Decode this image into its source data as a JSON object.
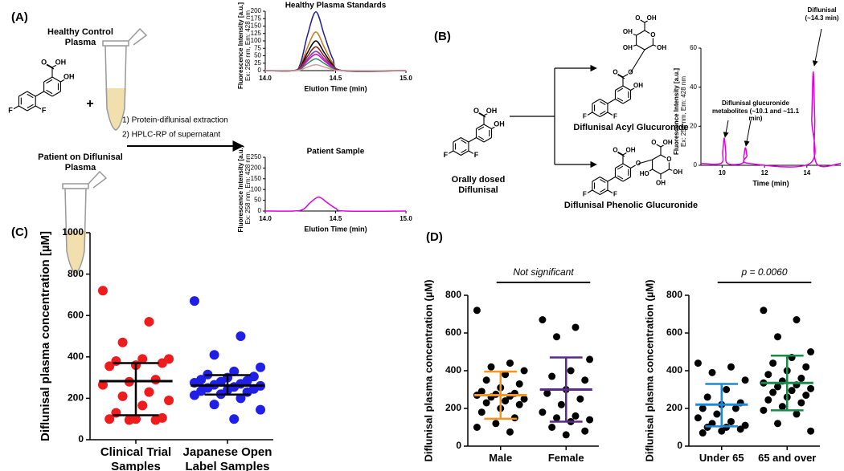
{
  "labels": {
    "a": "(A)",
    "b": "(B)",
    "c": "(C)",
    "d": "(D)"
  },
  "panel_a": {
    "healthy": "Healthy Control Plasma",
    "patient": "Patient on Diflunisal Plasma",
    "plus": "+",
    "steps": [
      "1) Protein-diflunisal extraction",
      "2) HPLC-RP of supernatant"
    ],
    "structure": [
      "O",
      "OH",
      "OH",
      "F",
      "F"
    ]
  },
  "panel_b": {
    "parent": "Orally dosed Diflunisal",
    "parent_structure": [
      "O",
      "OH",
      "OH",
      "F",
      "F"
    ],
    "acyl": "Diflunisal Acyl Glucuronide",
    "acyl_structure": [
      "O",
      "O",
      "OH",
      "F",
      "F",
      "O",
      "OH",
      "OH",
      "OH",
      "O",
      "OH"
    ],
    "phenolic": "Diflunisal Phenolic Glucuronide",
    "phenolic_structure": [
      "O",
      "OH",
      "O",
      "F",
      "F",
      "O",
      "O",
      "OH",
      "OH",
      "OH",
      "HO"
    ]
  },
  "chart_data": [
    {
      "type": "line",
      "title": "Healthy Plasma Standards",
      "xlabel": "Elution Time (min)",
      "ylabel": "Fluorescence Intensity [a.u.]",
      "ylabel_sub": "Ex: 258 nm, Em: 428 nm",
      "xlim": [
        14,
        15
      ],
      "xticks": [
        {
          "value": 14,
          "label": "14.0"
        },
        {
          "value": 14.5,
          "label": "14.5"
        },
        {
          "value": 15,
          "label": "15.0"
        }
      ],
      "ylim": [
        0,
        200
      ],
      "yticks": [
        0,
        25,
        50,
        75,
        100,
        125,
        150,
        175,
        200
      ],
      "x": [
        14.0,
        14.2,
        14.25,
        14.3,
        14.36,
        14.42,
        14.48,
        14.55,
        15.0
      ],
      "series": [
        {
          "color": "#1f1f8f",
          "values": [
            0,
            0,
            24,
            119,
            198,
            119,
            40,
            0,
            0
          ]
        },
        {
          "color": "#c8781e",
          "values": [
            0,
            0,
            16,
            78,
            130,
            78,
            26,
            0,
            0
          ]
        },
        {
          "color": "#000000",
          "values": [
            0,
            0,
            12,
            60,
            100,
            60,
            20,
            0,
            0
          ]
        },
        {
          "color": "#8b1a1a",
          "values": [
            0,
            0,
            10,
            48,
            80,
            48,
            16,
            0,
            0
          ]
        },
        {
          "color": "#7b3fa0",
          "values": [
            0,
            0,
            8,
            39,
            65,
            39,
            13,
            0,
            0
          ]
        },
        {
          "color": "#e000e0",
          "values": [
            0,
            0,
            7,
            33,
            55,
            33,
            11,
            0,
            0
          ]
        },
        {
          "color": "#2e8b57",
          "values": [
            0,
            0,
            5,
            24,
            40,
            24,
            8,
            0,
            0
          ]
        },
        {
          "color": "#d89a9a",
          "values": [
            0,
            0,
            2,
            12,
            20,
            12,
            4,
            0,
            0
          ]
        }
      ]
    },
    {
      "type": "line",
      "title": "Patient Sample",
      "xlabel": "Elution Time (min)",
      "ylabel": "Fluorescence Intensity [a.u.]",
      "ylabel_sub": "Ex: 258 nm, Em: 428 nm",
      "xlim": [
        14,
        15
      ],
      "xticks": [
        {
          "value": 14,
          "label": "14.0"
        },
        {
          "value": 14.5,
          "label": "14.5"
        },
        {
          "value": 15,
          "label": "15.0"
        }
      ],
      "ylim": [
        0,
        250
      ],
      "yticks": [
        0,
        50,
        100,
        150,
        200,
        250
      ],
      "x": [
        14.0,
        14.2,
        14.27,
        14.32,
        14.38,
        14.44,
        14.5,
        14.57,
        15.0
      ],
      "series": [
        {
          "color": "#e000e0",
          "values": [
            0,
            0,
            8,
            39,
            65,
            39,
            13,
            0,
            0
          ]
        }
      ]
    },
    {
      "type": "line",
      "xlabel": "Time (min)",
      "ylabel": "Fluorescence Intensity [a.u.]",
      "ylabel_sub": "Ex: 258 nm, Em: 428 nm",
      "xlim": [
        9,
        15.6
      ],
      "xticks": [
        10,
        12,
        14
      ],
      "ylim": [
        0,
        60
      ],
      "yticks": [
        0,
        20,
        40,
        60
      ],
      "x": [
        9,
        9.95,
        10.03,
        10.1,
        10.17,
        10.25,
        10.95,
        11.03,
        11.1,
        11.17,
        11.25,
        14.15,
        14.23,
        14.3,
        14.37,
        14.45,
        15.6
      ],
      "series": [
        {
          "color": "#e000e0",
          "values": [
            1,
            1,
            7,
            14,
            7,
            1,
            1,
            5,
            9,
            5,
            1,
            1,
            24,
            48,
            24,
            1,
            1
          ]
        }
      ],
      "annotations": [
        "Diflunisal glucuronide metabolites (~10.1 and ~11.1 min)",
        "Diflunisal (~14.3 min)"
      ]
    },
    {
      "type": "dot",
      "ylabel": "Diflunisal plasma concentration [µM]",
      "ylim": [
        0,
        1000
      ],
      "yticks": [
        0,
        200,
        400,
        600,
        800,
        1000
      ],
      "categories": [
        "Clinical Trial Samples",
        "Japanese Open Label Samples"
      ],
      "groups": [
        {
          "color": "#ee1c1c",
          "bar_color": "#000000",
          "median": 283,
          "q1": 118,
          "q3": 370,
          "values": [
            720,
            570,
            470,
            390,
            390,
            380,
            370,
            360,
            355,
            290,
            280,
            265,
            230,
            210,
            190,
            165,
            130,
            105,
            100,
            100,
            95,
            95
          ]
        },
        {
          "color": "#1f1fe8",
          "bar_color": "#000000",
          "median": 262,
          "q1": 218,
          "q3": 312,
          "values": [
            670,
            500,
            410,
            350,
            330,
            315,
            305,
            300,
            290,
            285,
            280,
            275,
            270,
            265,
            260,
            255,
            250,
            245,
            240,
            235,
            230,
            220,
            215,
            200,
            170,
            145,
            100
          ]
        }
      ]
    },
    {
      "type": "dot",
      "ylabel": "Diflunisal plasma concentration (µM)",
      "ylim": [
        0,
        800
      ],
      "yticks": [
        0,
        200,
        400,
        600,
        800
      ],
      "categories": [
        "Male",
        "Female"
      ],
      "annotation": "Not significant",
      "groups": [
        {
          "color": "#000000",
          "bar_color": "#f7941d",
          "median": 270,
          "q1": 145,
          "q3": 395,
          "values": [
            720,
            440,
            420,
            400,
            380,
            350,
            330,
            310,
            290,
            280,
            275,
            270,
            265,
            260,
            250,
            240,
            230,
            220,
            200,
            180,
            150,
            120,
            100,
            75
          ]
        },
        {
          "color": "#000000",
          "bar_color": "#5b2a86",
          "median": 300,
          "q1": 130,
          "q3": 470,
          "values": [
            670,
            630,
            580,
            460,
            400,
            370,
            350,
            300,
            280,
            250,
            220,
            180,
            160,
            150,
            140,
            130,
            100,
            80,
            60
          ]
        }
      ]
    },
    {
      "type": "dot",
      "ylabel": "Diflunisal plasma concentration (µM)",
      "ylim": [
        0,
        800
      ],
      "yticks": [
        0,
        200,
        400,
        600,
        800
      ],
      "categories": [
        "Under 65",
        "65 and over"
      ],
      "annotation": "p = 0.0060",
      "groups": [
        {
          "color": "#000000",
          "bar_color": "#1e88d8",
          "median": 220,
          "q1": 105,
          "q3": 330,
          "values": [
            440,
            420,
            390,
            350,
            300,
            260,
            230,
            220,
            200,
            200,
            170,
            150,
            130,
            120,
            110,
            100,
            100,
            90,
            80,
            70
          ]
        },
        {
          "color": "#000000",
          "bar_color": "#1a8a4a",
          "median": 335,
          "q1": 190,
          "q3": 480,
          "values": [
            720,
            670,
            580,
            500,
            470,
            440,
            420,
            400,
            380,
            360,
            345,
            335,
            325,
            315,
            305,
            295,
            285,
            270,
            260,
            245,
            230,
            210,
            190,
            170,
            120,
            80
          ]
        }
      ]
    }
  ]
}
